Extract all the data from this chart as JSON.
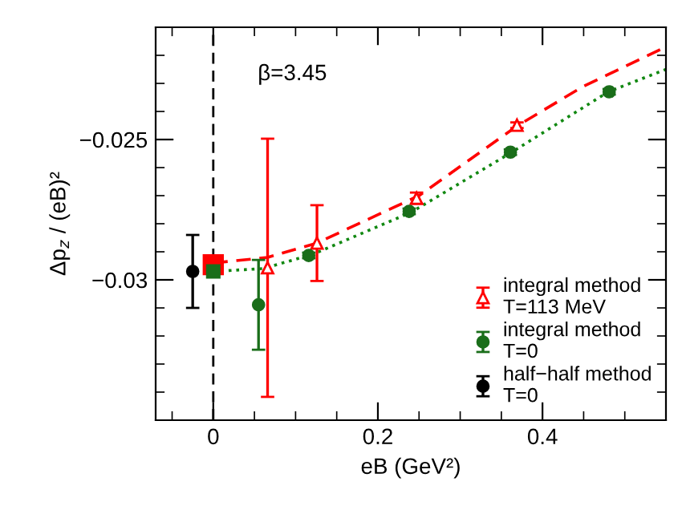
{
  "chart_data": {
    "type": "scatter",
    "xlabel": "eB (GeV²)",
    "ylabel": "Δp$_{z}$ / (eB)²",
    "xlim": [
      -0.07,
      0.55
    ],
    "ylim": [
      -0.035,
      -0.021
    ],
    "xticks": [
      {
        "value": -0.05,
        "label": null
      },
      0,
      {
        "value": 0.05,
        "label": null
      },
      {
        "value": 0.1,
        "label": null
      },
      {
        "value": 0.15,
        "label": null
      },
      0.2,
      {
        "value": 0.25,
        "label": null
      },
      {
        "value": 0.3,
        "label": null
      },
      {
        "value": 0.35,
        "label": null
      },
      0.4,
      {
        "value": 0.45,
        "label": null
      },
      {
        "value": 0.5,
        "label": null
      }
    ],
    "yticks": [
      {
        "value": -0.034,
        "label": null
      },
      {
        "value": -0.033,
        "label": null
      },
      {
        "value": -0.032,
        "label": null
      },
      {
        "value": -0.031,
        "label": null
      },
      {
        "value": -0.03,
        "label": "−0.03"
      },
      {
        "value": -0.029,
        "label": null
      },
      {
        "value": -0.028,
        "label": null
      },
      {
        "value": -0.027,
        "label": null
      },
      {
        "value": -0.026,
        "label": null
      },
      {
        "value": -0.025,
        "label": "−0.025"
      },
      {
        "value": -0.024,
        "label": null
      },
      {
        "value": -0.023,
        "label": null
      },
      {
        "value": -0.022,
        "label": null
      }
    ],
    "grid": false,
    "legend": "bottom right",
    "ref_lines": [
      {
        "axis": "x",
        "value": 0,
        "color": "#000000",
        "line_style": "dashed"
      }
    ],
    "annotations": [
      {
        "text": "β=3.45"
      }
    ],
    "series": [
      {
        "type": "line",
        "color": "#ff0000",
        "line_style": "dashed",
        "marker": "none",
        "x": [
          0,
          0.066,
          0.125,
          0.25,
          0.37,
          0.45,
          0.55
        ],
        "values": [
          -0.0294,
          -0.0292,
          -0.0287,
          -0.027,
          -0.0245,
          -0.0231,
          -0.0217
        ]
      },
      {
        "type": "line",
        "color": "#118811",
        "line_style": "dotted",
        "marker": "none",
        "x": [
          0,
          0.06,
          0.12,
          0.24,
          0.36,
          0.48,
          0.55
        ],
        "values": [
          -0.0297,
          -0.0296,
          -0.0291,
          -0.0276,
          -0.0255,
          -0.0233,
          -0.0225
        ]
      },
      {
        "name": "integral method\nT=113 MeV",
        "color": "#ff0000",
        "marker": "triangle",
        "x": [
          0.066,
          0.126,
          0.247,
          0.369
        ],
        "values": [
          -0.02957,
          -0.02869,
          -0.02709,
          -0.02449
        ],
        "errors": [
          0.0046,
          0.00135,
          0.0002,
          0.0001
        ]
      },
      {
        "name": "integral method\nT=0",
        "color": "#1a6e1a",
        "marker": "circle",
        "x": [
          0.055,
          0.116,
          0.238,
          0.361,
          0.481
        ],
        "values": [
          -0.03089,
          -0.02913,
          -0.02756,
          -0.02545,
          -0.0233
        ],
        "errors": [
          0.0016,
          0.0001,
          0.0001,
          0.0001,
          0.0001
        ]
      },
      {
        "name": "half−half method\nT=0",
        "color": "#000000",
        "marker": "circle",
        "x": [
          -0.025
        ],
        "values": [
          -0.0297
        ],
        "errors": [
          0.0013
        ]
      },
      {
        "color": "#ff0000",
        "marker": "square",
        "x": [
          0
        ],
        "values": [
          -0.02946
        ]
      },
      {
        "color": "#1a6e1a",
        "marker": "square",
        "x": [
          0
        ],
        "values": [
          -0.0297
        ]
      }
    ]
  }
}
